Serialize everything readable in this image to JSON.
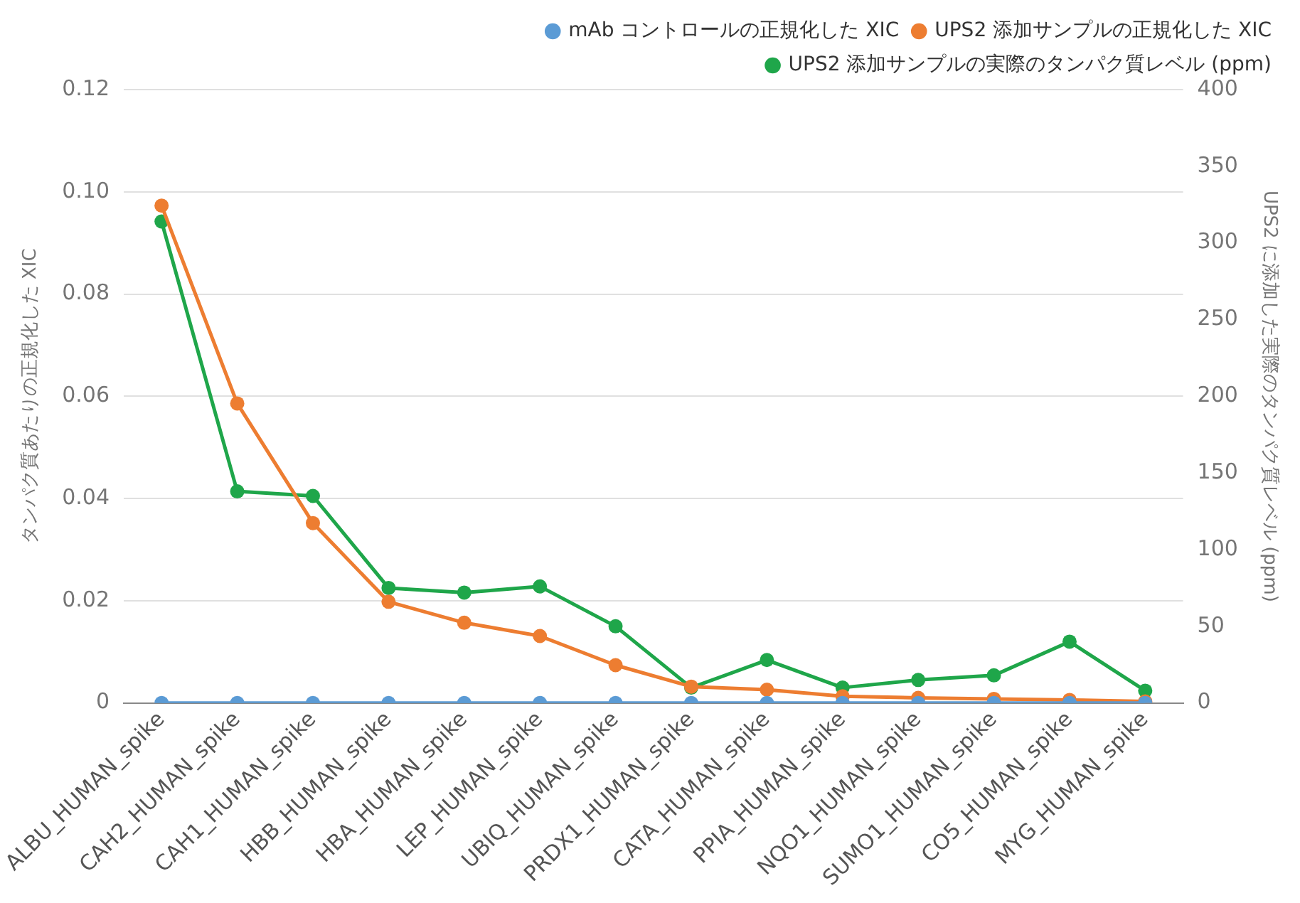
{
  "chart_data": {
    "type": "line",
    "ylabel": "タンパク質あたりの正規化した XIC",
    "y2label": "UPS2 に添加した実際のタンパク質レベル (ppm)",
    "categories": [
      "ALBU_HUMAN_spike",
      "CAH2_HUMAN_spike",
      "CAH1_HUMAN_spike",
      "HBB_HUMAN_spike",
      "HBA_HUMAN_spike",
      "LEP_HUMAN_spike",
      "UBIQ_HUMAN_spike",
      "PRDX1_HUMAN_spike",
      "CATA_HUMAN_spike",
      "PPIA_HUMAN_spike",
      "NQO1_HUMAN_spike",
      "SUMO1_HUMAN_spike",
      "CO5_HUMAN_spike",
      "MYG_HUMAN_spike"
    ],
    "series": [
      {
        "name": "mAb コントロールの正規化した XIC",
        "color": "#5b9bd5",
        "values": [
          0,
          0,
          0,
          0,
          0,
          0,
          0,
          0,
          0,
          0,
          0,
          0,
          0,
          0
        ]
      },
      {
        "name": "UPS2 添加サンプルの正規化した XIC",
        "color": "#ed7d31",
        "values": [
          0.0973,
          0.0586,
          0.0352,
          0.0198,
          0.0157,
          0.0131,
          0.0074,
          0.0032,
          0.0026,
          0.0013,
          0.001,
          0.0008,
          0.0006,
          0.0003
        ]
      },
      {
        "name": "UPS2 添加サンプルの実際のタンパク質レベル (ppm)",
        "color": "#1fa64a",
        "axis": "y2",
        "values": [
          314,
          138,
          135,
          75,
          72,
          76,
          50,
          10,
          28,
          10,
          15,
          18,
          40,
          8
        ]
      }
    ],
    "ylim": [
      0,
      0.12
    ],
    "yticks": [
      0,
      {
        "value": 0.02,
        "label": "0.02"
      },
      {
        "value": 0.04,
        "label": "0.04"
      },
      {
        "value": 0.06,
        "label": "0.06"
      },
      {
        "value": 0.08,
        "label": "0.08"
      },
      {
        "value": 0.1,
        "label": "0.10"
      },
      {
        "value": 0.12,
        "label": "0.12"
      }
    ],
    "y2lim": [
      0,
      400
    ],
    "y2ticks": [
      0,
      50,
      100,
      150,
      200,
      250,
      300,
      350,
      400
    ],
    "grid": "y",
    "legend": "top right",
    "marker": "circle",
    "line_style": "solid"
  }
}
